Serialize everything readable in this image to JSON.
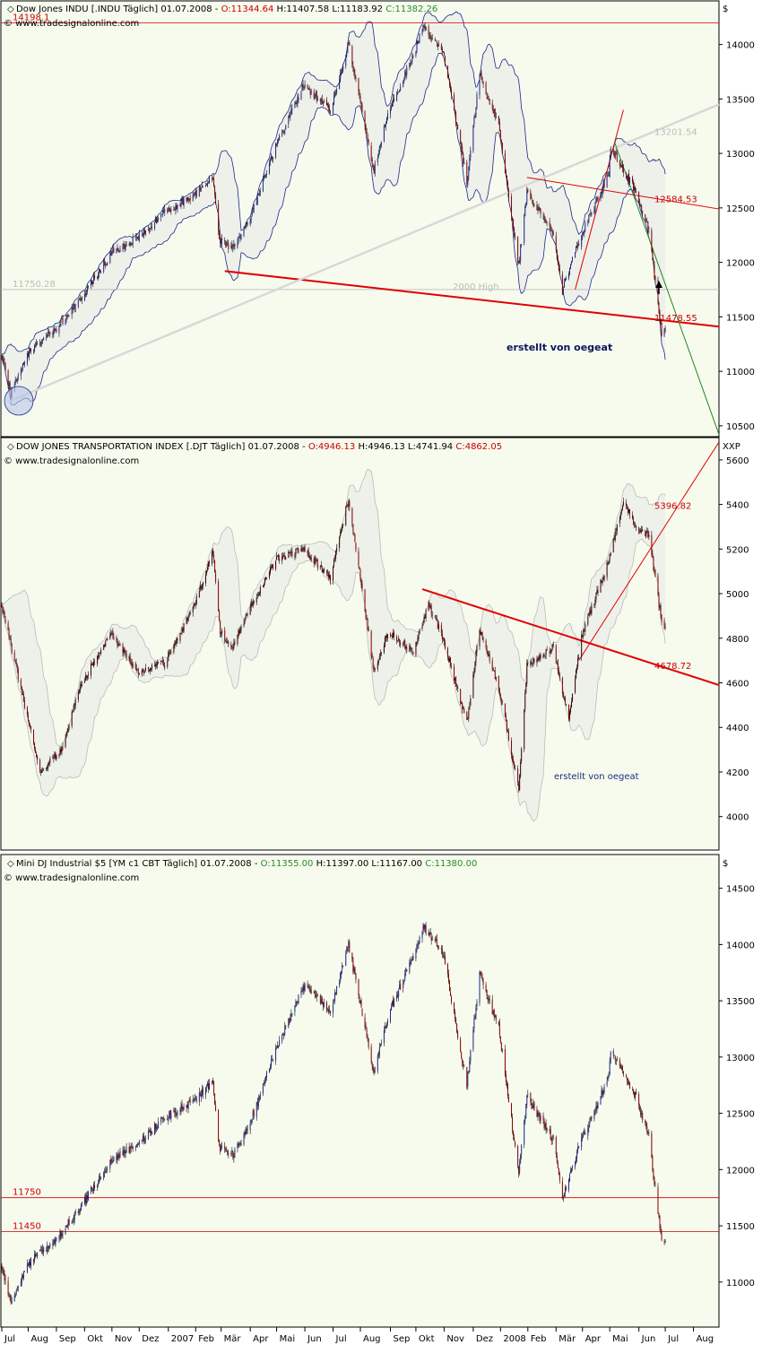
{
  "chart_data": [
    {
      "type": "candlestick",
      "title": "Dow Jones INDU [.INDU  Täglich] 01.07.2008",
      "ohlc_header": {
        "open": "O:11344.64",
        "high": "H:11407.58",
        "low": "L:11183.92",
        "close": "C:11382.26"
      },
      "source": "© www.tradesignalonline.com",
      "currency_label": "$",
      "ylim": [
        10400,
        14400
      ],
      "yticks": [
        14000,
        13500,
        13000,
        12500,
        12000,
        11500,
        11000,
        10500
      ],
      "x_range": [
        "2006-07-03",
        "2008-08-29"
      ],
      "close_path": [
        [
          "2006-07-03",
          11150
        ],
        [
          "2006-07-13",
          10800
        ],
        [
          "2006-07-20",
          10950
        ],
        [
          "2006-08-04",
          11200
        ],
        [
          "2006-08-31",
          11380
        ],
        [
          "2006-09-29",
          11680
        ],
        [
          "2006-10-31",
          12080
        ],
        [
          "2006-11-30",
          12230
        ],
        [
          "2006-12-29",
          12460
        ],
        [
          "2007-01-31",
          12620
        ],
        [
          "2007-02-20",
          12780
        ],
        [
          "2007-02-27",
          12200
        ],
        [
          "2007-03-14",
          12130
        ],
        [
          "2007-03-30",
          12350
        ],
        [
          "2007-04-30",
          13060
        ],
        [
          "2007-05-31",
          13630
        ],
        [
          "2007-06-29",
          13400
        ],
        [
          "2007-07-19",
          14000
        ],
        [
          "2007-08-16",
          12850
        ],
        [
          "2007-08-31",
          13360
        ],
        [
          "2007-09-28",
          13900
        ],
        [
          "2007-10-09",
          14165
        ],
        [
          "2007-10-31",
          13930
        ],
        [
          "2007-11-26",
          12750
        ],
        [
          "2007-12-10",
          13730
        ],
        [
          "2007-12-31",
          13260
        ],
        [
          "2008-01-22",
          11970
        ],
        [
          "2008-01-31",
          12650
        ],
        [
          "2008-02-29",
          12260
        ],
        [
          "2008-03-10",
          11740
        ],
        [
          "2008-03-31",
          12260
        ],
        [
          "2008-04-30",
          12820
        ],
        [
          "2008-05-02",
          13060
        ],
        [
          "2008-05-30",
          12640
        ],
        [
          "2008-06-13",
          12300
        ],
        [
          "2008-06-27",
          11340
        ],
        [
          "2008-07-01",
          11382
        ]
      ],
      "levels": [
        {
          "label": "14198.1",
          "value": 14198.1,
          "color": "#cc0000"
        },
        {
          "label": "11750.28",
          "value": 11750.28,
          "color": "#bbbbbb"
        },
        {
          "label": "2000 High",
          "value": 11750.28,
          "color": "#bbbbbb"
        },
        {
          "label": "13201.54",
          "value": 13201.54,
          "color": "#bbbbbb"
        },
        {
          "label": "12584.53",
          "value": 12584.53,
          "color": "#cc0000"
        },
        {
          "label": "11478.55",
          "value": 11478.55,
          "color": "#cc0000"
        }
      ],
      "trendlines": [
        {
          "from": [
            "2007-03-05",
            11920
          ],
          "to": [
            "2008-08-29",
            11410
          ],
          "color": "#e00000"
        },
        {
          "from": [
            "2006-07-10",
            10720
          ],
          "to": [
            "2008-08-29",
            13450
          ],
          "color": "#d8d8d8"
        },
        {
          "from": [
            "2008-01-31",
            12780
          ],
          "to": [
            "2008-08-29",
            12490
          ],
          "color": "#e00000"
        },
        {
          "from": [
            "2008-03-24",
            11750
          ],
          "to": [
            "2008-05-16",
            13400
          ],
          "color": "#e00000"
        },
        {
          "from": [
            "2008-05-06",
            13110
          ],
          "to": [
            "2008-08-29",
            10420
          ],
          "color": "#228822"
        }
      ],
      "annotation": "erstellt von oegeat"
    },
    {
      "type": "candlestick",
      "title": "DOW JONES TRANSPORTATION INDEX [.DJT  Täglich] 01.07.2008",
      "ohlc_header": {
        "open": "O:4946.13",
        "high": "H:4946.13",
        "low": "L:4741.94",
        "close": "C:4862.05"
      },
      "source": "© www.tradesignalonline.com",
      "currency_label": "XXP",
      "ylim": [
        3850,
        5700
      ],
      "yticks": [
        5600,
        5400,
        5200,
        5000,
        4800,
        4600,
        4400,
        4200,
        4000
      ],
      "x_range": [
        "2006-07-03",
        "2008-08-29"
      ],
      "close_path": [
        [
          "2006-07-03",
          4950
        ],
        [
          "2006-07-31",
          4450
        ],
        [
          "2006-08-15",
          4200
        ],
        [
          "2006-09-06",
          4300
        ],
        [
          "2006-09-29",
          4600
        ],
        [
          "2006-10-31",
          4820
        ],
        [
          "2006-11-30",
          4650
        ],
        [
          "2006-12-29",
          4690
        ],
        [
          "2007-01-31",
          4950
        ],
        [
          "2007-02-20",
          5190
        ],
        [
          "2007-02-28",
          4830
        ],
        [
          "2007-03-14",
          4760
        ],
        [
          "2007-03-30",
          4920
        ],
        [
          "2007-04-30",
          5150
        ],
        [
          "2007-05-31",
          5200
        ],
        [
          "2007-06-29",
          5070
        ],
        [
          "2007-07-19",
          5430
        ],
        [
          "2007-08-16",
          4650
        ],
        [
          "2007-08-31",
          4830
        ],
        [
          "2007-09-28",
          4740
        ],
        [
          "2007-10-15",
          4950
        ],
        [
          "2007-10-31",
          4800
        ],
        [
          "2007-11-26",
          4420
        ],
        [
          "2007-12-10",
          4850
        ],
        [
          "2007-12-31",
          4580
        ],
        [
          "2008-01-22",
          4120
        ],
        [
          "2008-01-31",
          4680
        ],
        [
          "2008-02-29",
          4760
        ],
        [
          "2008-03-17",
          4430
        ],
        [
          "2008-03-31",
          4810
        ],
        [
          "2008-04-30",
          5150
        ],
        [
          "2008-05-16",
          5420
        ],
        [
          "2008-05-30",
          5300
        ],
        [
          "2008-06-13",
          5260
        ],
        [
          "2008-06-27",
          4870
        ],
        [
          "2008-07-01",
          4862
        ]
      ],
      "levels": [
        {
          "label": "5396.82",
          "value": 5396.82,
          "color": "#cc0000"
        },
        {
          "label": "4678.72",
          "value": 4678.72,
          "color": "#cc0000"
        }
      ],
      "trendlines": [
        {
          "from": [
            "2007-10-08",
            5020
          ],
          "to": [
            "2008-08-29",
            4590
          ],
          "color": "#e00000"
        },
        {
          "from": [
            "2008-03-28",
            4700
          ],
          "to": [
            "2008-08-29",
            5680
          ],
          "color": "#e00000"
        }
      ],
      "annotation": "erstellt von oegeat"
    },
    {
      "type": "candlestick",
      "title": "Mini DJ Industrial $5 [YM c1 CBT  Täglich] 01.07.2008",
      "ohlc_header": {
        "open": "O:11355.00",
        "high": "H:11397.00",
        "low": "L:11167.00",
        "close": "C:11380.00"
      },
      "source": "© www.tradesignalonline.com",
      "currency_label": "$",
      "ylim": [
        10600,
        14800
      ],
      "yticks": [
        14500,
        14000,
        13500,
        13000,
        12500,
        12000,
        11500,
        11000
      ],
      "x_range": [
        "2006-07-03",
        "2008-08-29"
      ],
      "close_path": [
        [
          "2006-07-03",
          11150
        ],
        [
          "2006-07-13",
          10800
        ],
        [
          "2006-07-20",
          10950
        ],
        [
          "2006-08-04",
          11200
        ],
        [
          "2006-08-31",
          11380
        ],
        [
          "2006-09-29",
          11680
        ],
        [
          "2006-10-31",
          12080
        ],
        [
          "2006-11-30",
          12230
        ],
        [
          "2006-12-29",
          12460
        ],
        [
          "2007-01-31",
          12620
        ],
        [
          "2007-02-20",
          12780
        ],
        [
          "2007-02-27",
          12200
        ],
        [
          "2007-03-14",
          12130
        ],
        [
          "2007-03-30",
          12350
        ],
        [
          "2007-04-30",
          13060
        ],
        [
          "2007-05-31",
          13630
        ],
        [
          "2007-06-29",
          13400
        ],
        [
          "2007-07-19",
          14000
        ],
        [
          "2007-08-16",
          12850
        ],
        [
          "2007-08-31",
          13360
        ],
        [
          "2007-09-28",
          13900
        ],
        [
          "2007-10-09",
          14165
        ],
        [
          "2007-10-31",
          13930
        ],
        [
          "2007-11-26",
          12750
        ],
        [
          "2007-12-10",
          13730
        ],
        [
          "2007-12-31",
          13260
        ],
        [
          "2008-01-22",
          11970
        ],
        [
          "2008-01-31",
          12650
        ],
        [
          "2008-02-29",
          12260
        ],
        [
          "2008-03-10",
          11740
        ],
        [
          "2008-03-31",
          12260
        ],
        [
          "2008-04-30",
          12820
        ],
        [
          "2008-05-02",
          13060
        ],
        [
          "2008-05-30",
          12640
        ],
        [
          "2008-06-13",
          12300
        ],
        [
          "2008-06-27",
          11340
        ],
        [
          "2008-07-01",
          11380
        ]
      ],
      "levels": [
        {
          "label": "11750",
          "value": 11750,
          "color": "#cc0000"
        },
        {
          "label": "11450",
          "value": 11450,
          "color": "#cc0000"
        }
      ],
      "trendlines": []
    }
  ],
  "x_axis_labels": [
    {
      "label": "Jul",
      "date": "2006-07-03"
    },
    {
      "label": "Aug",
      "date": "2006-08-01"
    },
    {
      "label": "Sep",
      "date": "2006-09-01"
    },
    {
      "label": "Okt",
      "date": "2006-10-02"
    },
    {
      "label": "Nov",
      "date": "2006-11-01"
    },
    {
      "label": "Dez",
      "date": "2006-12-01"
    },
    {
      "label": "2007",
      "date": "2007-01-02"
    },
    {
      "label": "Feb",
      "date": "2007-02-01"
    },
    {
      "label": "Mär",
      "date": "2007-03-01"
    },
    {
      "label": "Apr",
      "date": "2007-04-02"
    },
    {
      "label": "Mai",
      "date": "2007-05-01"
    },
    {
      "label": "Jun",
      "date": "2007-06-01"
    },
    {
      "label": "Jul",
      "date": "2007-07-02"
    },
    {
      "label": "Aug",
      "date": "2007-08-01"
    },
    {
      "label": "Sep",
      "date": "2007-09-03"
    },
    {
      "label": "Okt",
      "date": "2007-10-01"
    },
    {
      "label": "Nov",
      "date": "2007-11-01"
    },
    {
      "label": "Dez",
      "date": "2007-12-03"
    },
    {
      "label": "2008",
      "date": "2008-01-02"
    },
    {
      "label": "Feb",
      "date": "2008-02-01"
    },
    {
      "label": "Mär",
      "date": "2008-03-03"
    },
    {
      "label": "Apr",
      "date": "2008-04-01"
    },
    {
      "label": "Mai",
      "date": "2008-05-01"
    },
    {
      "label": "Jun",
      "date": "2008-06-02"
    },
    {
      "label": "Jul",
      "date": "2008-07-01"
    },
    {
      "label": "Aug",
      "date": "2008-08-01"
    }
  ],
  "colors": {
    "up": "#1a2a8a",
    "down": "#8a0000",
    "band_fill": "#eef0ea",
    "panel_bg": "#f7fbee"
  }
}
